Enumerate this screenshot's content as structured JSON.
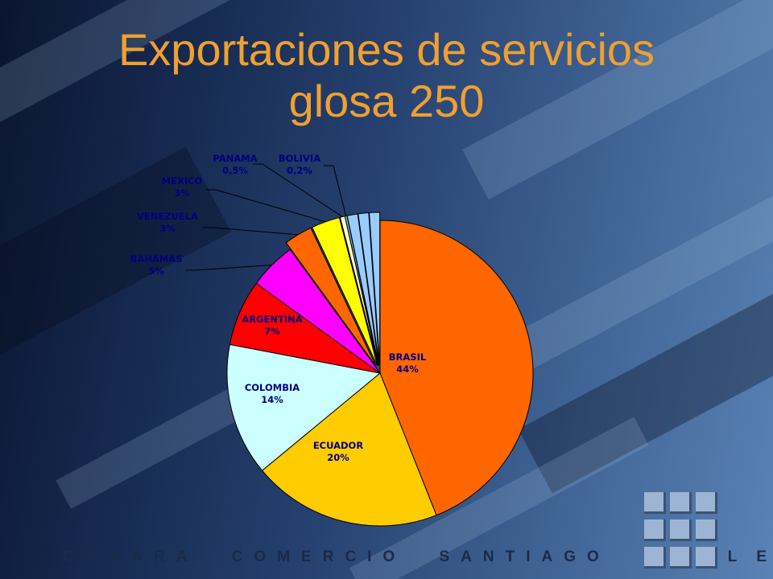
{
  "title": {
    "line1": "Exportaciones de servicios",
    "line2": "glosa 250"
  },
  "chart_data": {
    "type": "pie",
    "slices": [
      {
        "name": "BRASIL",
        "value_label": "44%",
        "value": 44,
        "color": "#ff6600"
      },
      {
        "name": "ECUADOR",
        "value_label": "20%",
        "value": 20,
        "color": "#ffcc00"
      },
      {
        "name": "COLOMBIA",
        "value_label": "14%",
        "value": 14,
        "color": "#ccffff"
      },
      {
        "name": "ARGENTINA",
        "value_label": "7%",
        "value": 7,
        "color": "#ff0000"
      },
      {
        "name": "BAHAMAS",
        "value_label": "5%",
        "value": 5,
        "color": "#ff00ff"
      },
      {
        "name": "VENEZUELA",
        "value_label": "3%",
        "value": 3,
        "color": "#ff6600"
      },
      {
        "name": "MEXICO",
        "value_label": "3%",
        "value": 3,
        "color": "#ffff00"
      },
      {
        "name": "PANAMA",
        "value_label": "0,5%",
        "value": 0.5,
        "color": "#ffffcc"
      },
      {
        "name": "BOLIVIA",
        "value_label": "0,2%",
        "value": 0.2,
        "color": "#99ccff"
      },
      {
        "name": "",
        "value_label": "",
        "value": 1.1,
        "color": "#99ccff"
      },
      {
        "name": "",
        "value_label": "",
        "value": 1.1,
        "color": "#99ccff"
      },
      {
        "name": "",
        "value_label": "",
        "value": 1.1,
        "color": "#99ccff"
      }
    ]
  },
  "footer": {
    "camara": "CAMARA",
    "comercio": "COMERCIO",
    "santiago": "SANTIAGO",
    "chile": "CHILE"
  },
  "colors": {
    "title": "#f0a030",
    "label_text": "#000080",
    "logo": "#9db4d4"
  }
}
